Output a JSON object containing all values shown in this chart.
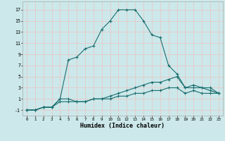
{
  "xlabel": "Humidex (Indice chaleur)",
  "bg_color": "#cce8ea",
  "line_color": "#1a6e6e",
  "grid_color": "#e8c8c8",
  "xlim": [
    -0.5,
    23.5
  ],
  "ylim": [
    -2.0,
    18.5
  ],
  "xticks": [
    0,
    1,
    2,
    3,
    4,
    5,
    6,
    7,
    8,
    9,
    10,
    11,
    12,
    13,
    14,
    15,
    16,
    17,
    18,
    19,
    20,
    21,
    22,
    23
  ],
  "yticks": [
    -1,
    1,
    3,
    5,
    7,
    9,
    11,
    13,
    15,
    17
  ],
  "line1_x": [
    0,
    1,
    2,
    3,
    4,
    5,
    6,
    7,
    8,
    9,
    10,
    11,
    12,
    13,
    14,
    15,
    16,
    17,
    18,
    19,
    20,
    21,
    22,
    23
  ],
  "line1_y": [
    -1.0,
    -1.0,
    -0.5,
    -0.5,
    1.0,
    8.0,
    8.5,
    10.0,
    10.5,
    13.5,
    15.0,
    17.0,
    17.0,
    17.0,
    15.0,
    12.5,
    12.0,
    7.0,
    5.5,
    3.0,
    3.0,
    3.0,
    2.5,
    2.0
  ],
  "line2_x": [
    0,
    1,
    2,
    3,
    4,
    5,
    6,
    7,
    8,
    9,
    10,
    11,
    12,
    13,
    14,
    15,
    16,
    17,
    18,
    19,
    20,
    21,
    22,
    23
  ],
  "line2_y": [
    -1.0,
    -1.0,
    -0.5,
    -0.5,
    1.0,
    1.0,
    0.5,
    0.5,
    1.0,
    1.0,
    1.5,
    2.0,
    2.5,
    3.0,
    3.5,
    4.0,
    4.0,
    4.5,
    5.0,
    3.0,
    3.5,
    3.0,
    3.0,
    2.0
  ],
  "line3_x": [
    0,
    1,
    2,
    3,
    4,
    5,
    6,
    7,
    8,
    9,
    10,
    11,
    12,
    13,
    14,
    15,
    16,
    17,
    18,
    19,
    20,
    21,
    22,
    23
  ],
  "line3_y": [
    -1.0,
    -1.0,
    -0.5,
    -0.5,
    0.5,
    0.5,
    0.5,
    0.5,
    1.0,
    1.0,
    1.0,
    1.5,
    1.5,
    2.0,
    2.0,
    2.5,
    2.5,
    3.0,
    3.0,
    2.0,
    2.5,
    2.0,
    2.0,
    2.0
  ]
}
